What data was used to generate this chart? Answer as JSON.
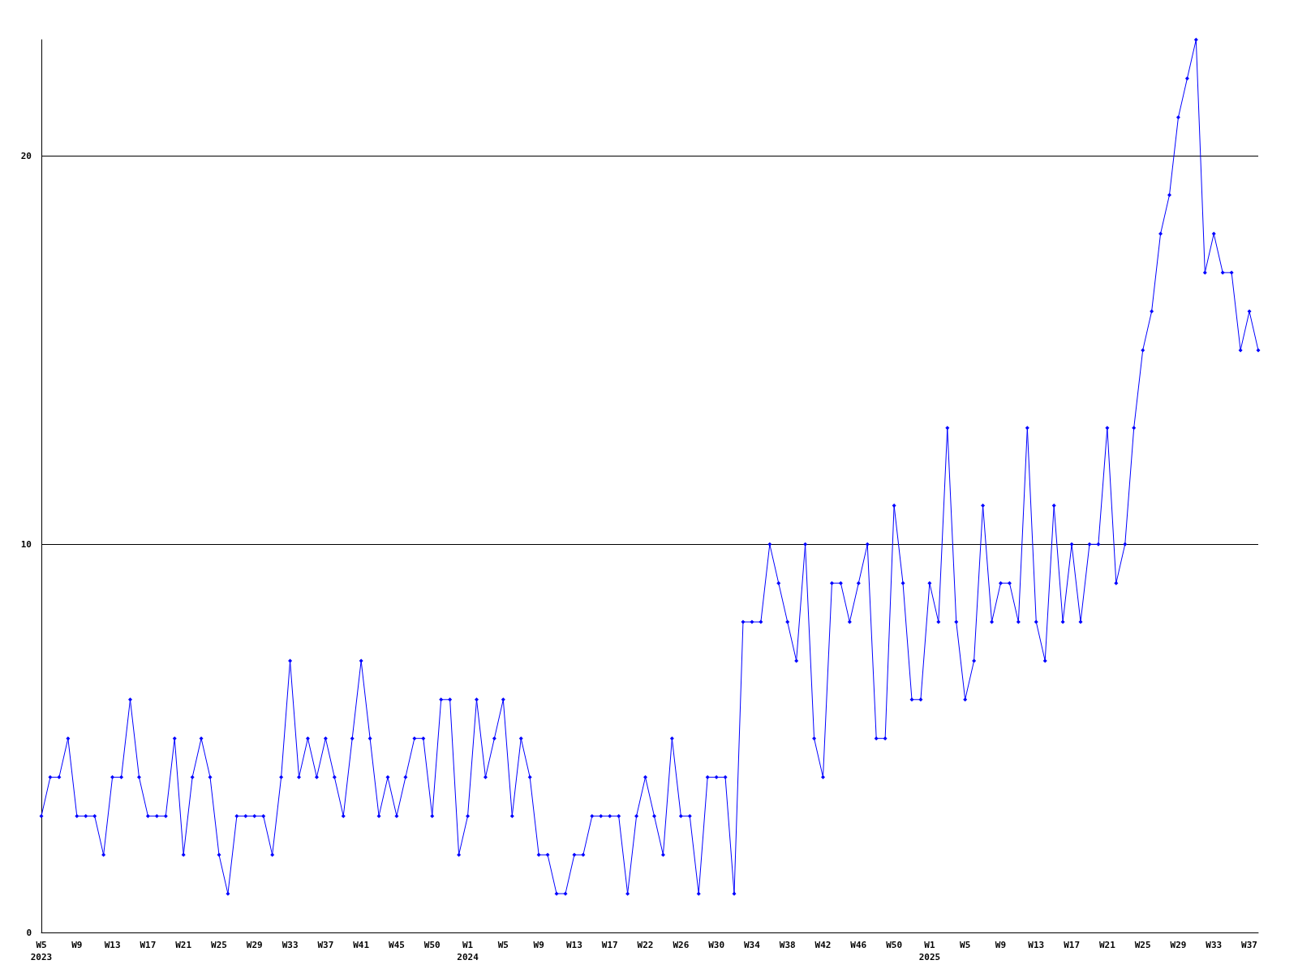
{
  "chart_data": {
    "type": "line",
    "categories": [
      "W5\n2023",
      null,
      null,
      null,
      "W9",
      null,
      null,
      null,
      "W13",
      null,
      null,
      null,
      "W17",
      null,
      null,
      null,
      "W21",
      null,
      null,
      null,
      "W25",
      null,
      null,
      null,
      "W29",
      null,
      null,
      null,
      "W33",
      null,
      null,
      null,
      "W37",
      null,
      null,
      null,
      "W41",
      null,
      null,
      null,
      "W45",
      null,
      null,
      null,
      "W50",
      null,
      null,
      null,
      "W1\n2024",
      null,
      null,
      null,
      "W5",
      null,
      null,
      null,
      "W9",
      null,
      null,
      null,
      "W13",
      null,
      null,
      null,
      "W17",
      null,
      null,
      null,
      "W22",
      null,
      null,
      null,
      "W26",
      null,
      null,
      null,
      "W30",
      null,
      null,
      null,
      "W34",
      null,
      null,
      null,
      "W38",
      null,
      null,
      null,
      "W42",
      null,
      null,
      null,
      "W46",
      null,
      null,
      null,
      "W50",
      null,
      null,
      null,
      "W1\n2025",
      null,
      null,
      null,
      "W5",
      null,
      null,
      null,
      "W9",
      null,
      null,
      null,
      "W13",
      null,
      null,
      null,
      "W17",
      null,
      null,
      null,
      "W21",
      null,
      null,
      null,
      "W25",
      null,
      null,
      null,
      "W29",
      null,
      null,
      null,
      "W33",
      null,
      null,
      null,
      "W37",
      null
    ],
    "series": [
      {
        "color": "#0000ff",
        "values": [
          3,
          4,
          4,
          5,
          3,
          3,
          3,
          2,
          4,
          4,
          6,
          4,
          3,
          3,
          3,
          5,
          2,
          4,
          5,
          4,
          2,
          1,
          3,
          3,
          3,
          3,
          2,
          4,
          7,
          4,
          5,
          4,
          5,
          4,
          3,
          5,
          7,
          5,
          3,
          4,
          3,
          4,
          5,
          5,
          3,
          6,
          6,
          2,
          3,
          6,
          4,
          5,
          6,
          3,
          5,
          4,
          2,
          2,
          1,
          1,
          2,
          2,
          3,
          3,
          3,
          3,
          1,
          3,
          4,
          3,
          2,
          5,
          3,
          3,
          1,
          4,
          4,
          4,
          1,
          8,
          8,
          8,
          10,
          9,
          8,
          7,
          10,
          5,
          4,
          9,
          9,
          8,
          9,
          10,
          5,
          5,
          11,
          9,
          6,
          6,
          9,
          8,
          13,
          8,
          6,
          7,
          11,
          8,
          9,
          9,
          8,
          13,
          8,
          7,
          11,
          8,
          10,
          8,
          10,
          10,
          13,
          9,
          10,
          13,
          15,
          16,
          18,
          19,
          21,
          22,
          23,
          17,
          18,
          17,
          17,
          15,
          16,
          15
        ]
      }
    ],
    "ylim": [
      0,
      23
    ],
    "yticks": [
      0,
      10,
      20
    ],
    "grid": "y",
    "marker": "diamond",
    "line_style": "solid"
  }
}
